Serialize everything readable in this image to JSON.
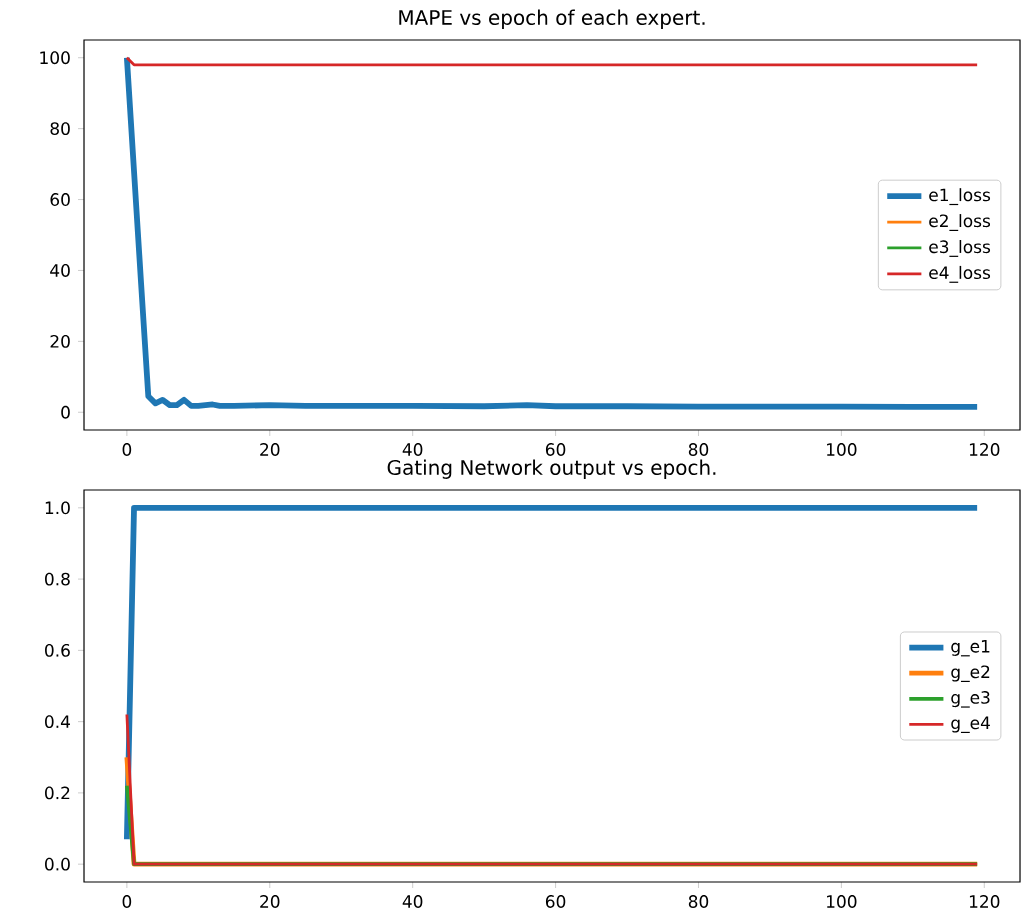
{
  "chart_data": [
    {
      "type": "line",
      "title": "MAPE vs epoch of each expert.",
      "xlim": [
        -6,
        125
      ],
      "ylim": [
        -5,
        105
      ],
      "xticks": [
        0,
        20,
        40,
        60,
        80,
        100,
        120
      ],
      "yticks": [
        0,
        20,
        40,
        60,
        80,
        100
      ],
      "legend": "right",
      "series": [
        {
          "name": "e1_loss",
          "color": "#1f77b4",
          "x": [
            0,
            1,
            2,
            3,
            4,
            5,
            6,
            7,
            8,
            9,
            10,
            11,
            12,
            13,
            15,
            20,
            25,
            30,
            40,
            50,
            56,
            60,
            70,
            80,
            90,
            100,
            110,
            119
          ],
          "values": [
            100,
            68,
            36,
            4.5,
            2.5,
            3.5,
            2,
            2,
            3.5,
            1.8,
            1.8,
            2,
            2.2,
            1.8,
            1.8,
            2,
            1.8,
            1.8,
            1.8,
            1.7,
            2,
            1.7,
            1.7,
            1.6,
            1.6,
            1.6,
            1.5,
            1.5
          ]
        },
        {
          "name": "e2_loss",
          "color": "#ff7f0e"
        },
        {
          "name": "e3_loss",
          "color": "#2ca02c"
        },
        {
          "name": "e4_loss",
          "color": "#d62728",
          "x": [
            0,
            1,
            119
          ],
          "values": [
            100,
            98,
            98
          ]
        }
      ]
    },
    {
      "type": "line",
      "title": "Gating Network output vs epoch.",
      "xlim": [
        -6,
        125
      ],
      "ylim": [
        -0.05,
        1.05
      ],
      "xticks": [
        0,
        20,
        40,
        60,
        80,
        100,
        120
      ],
      "yticks": [
        {
          "value": 0,
          "label": "0.0"
        },
        0.2,
        0.4,
        0.6,
        0.8,
        {
          "value": 1,
          "label": "1.0"
        }
      ],
      "legend": "right",
      "series": [
        {
          "name": "g_e1",
          "color": "#1f77b4",
          "x": [
            0,
            1,
            119
          ],
          "values": [
            0.07,
            1.0,
            1.0
          ]
        },
        {
          "name": "g_e2",
          "color": "#ff7f0e",
          "x": [
            0,
            1,
            119
          ],
          "values": [
            0.3,
            0,
            0
          ]
        },
        {
          "name": "g_e3",
          "color": "#2ca02c",
          "x": [
            0,
            1,
            119
          ],
          "values": [
            0.22,
            0,
            0
          ]
        },
        {
          "name": "g_e4",
          "color": "#d62728",
          "x": [
            0,
            1,
            119
          ],
          "values": [
            0.42,
            0,
            0
          ]
        }
      ]
    }
  ]
}
